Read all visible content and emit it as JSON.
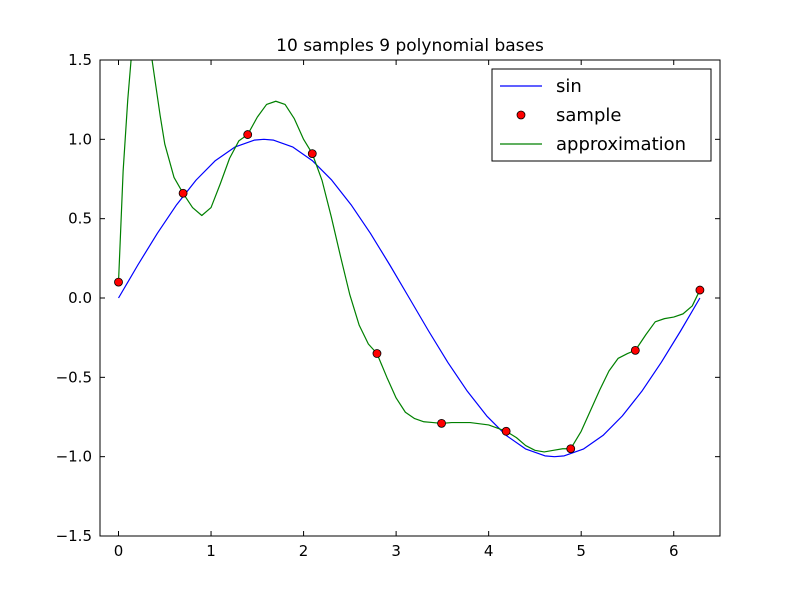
{
  "chart_data": {
    "type": "line",
    "title": "10 samples 9 polynomial bases",
    "xlabel": "",
    "ylabel": "",
    "xlim": [
      -0.2,
      6.5
    ],
    "ylim": [
      -1.5,
      1.5
    ],
    "xticks": [
      {
        "value": 0,
        "label": "0"
      },
      {
        "value": 1,
        "label": "1"
      },
      {
        "value": 2,
        "label": "2"
      },
      {
        "value": 3,
        "label": "3"
      },
      {
        "value": 4,
        "label": "4"
      },
      {
        "value": 5,
        "label": "5"
      },
      {
        "value": 6,
        "label": "6"
      }
    ],
    "yticks": [
      {
        "value": -1.5,
        "label": "−1.5"
      },
      {
        "value": -1.0,
        "label": "−1.0"
      },
      {
        "value": -0.5,
        "label": "−0.5"
      },
      {
        "value": 0.0,
        "label": "0.0"
      },
      {
        "value": 0.5,
        "label": "0.5"
      },
      {
        "value": 1.0,
        "label": "1.0"
      },
      {
        "value": 1.5,
        "label": "1.5"
      }
    ],
    "grid": false,
    "legend_position": "top-right",
    "series": [
      {
        "name": "sin",
        "kind": "line",
        "color": "#0000ff",
        "x": [
          0,
          0.209,
          0.419,
          0.628,
          0.838,
          1.047,
          1.257,
          1.466,
          1.571,
          1.676,
          1.885,
          2.094,
          2.304,
          2.513,
          2.723,
          2.932,
          3.142,
          3.351,
          3.56,
          3.77,
          3.979,
          4.189,
          4.398,
          4.608,
          4.712,
          4.817,
          5.027,
          5.236,
          5.445,
          5.655,
          5.864,
          6.074,
          6.283
        ],
        "y": [
          0,
          0.208,
          0.407,
          0.588,
          0.743,
          0.866,
          0.951,
          0.995,
          1.0,
          0.995,
          0.951,
          0.866,
          0.743,
          0.588,
          0.407,
          0.208,
          0,
          -0.208,
          -0.407,
          -0.588,
          -0.743,
          -0.866,
          -0.951,
          -0.995,
          -1.0,
          -0.995,
          -0.951,
          -0.866,
          -0.743,
          -0.588,
          -0.407,
          -0.208,
          0
        ]
      },
      {
        "name": "sample",
        "kind": "points",
        "color": "#ff0000",
        "x": [
          0,
          0.698,
          1.396,
          2.094,
          2.793,
          3.491,
          4.189,
          4.887,
          5.585,
          6.283
        ],
        "y": [
          0.1,
          0.66,
          1.03,
          0.91,
          -0.35,
          -0.79,
          -0.84,
          -0.95,
          -0.33,
          0.05
        ]
      },
      {
        "name": "approximation",
        "kind": "line",
        "color": "#008000",
        "x": [
          0,
          0.05,
          0.1,
          0.15,
          0.2,
          0.25,
          0.3,
          0.35,
          0.4,
          0.45,
          0.5,
          0.6,
          0.698,
          0.8,
          0.9,
          1.0,
          1.1,
          1.2,
          1.3,
          1.396,
          1.5,
          1.6,
          1.7,
          1.8,
          1.9,
          2.0,
          2.094,
          2.2,
          2.3,
          2.4,
          2.5,
          2.6,
          2.7,
          2.793,
          2.9,
          3.0,
          3.1,
          3.2,
          3.3,
          3.4,
          3.491,
          3.6,
          3.8,
          4.0,
          4.189,
          4.3,
          4.4,
          4.5,
          4.6,
          4.7,
          4.8,
          4.887,
          5.0,
          5.1,
          5.2,
          5.3,
          5.4,
          5.5,
          5.585,
          5.7,
          5.8,
          5.9,
          6.0,
          6.1,
          6.2,
          6.283
        ],
        "y": [
          0.1,
          0.8,
          1.25,
          1.6,
          1.78,
          1.8,
          1.72,
          1.55,
          1.35,
          1.15,
          0.97,
          0.76,
          0.66,
          0.57,
          0.52,
          0.57,
          0.72,
          0.88,
          0.99,
          1.03,
          1.14,
          1.22,
          1.24,
          1.22,
          1.13,
          1.0,
          0.91,
          0.74,
          0.51,
          0.26,
          0.02,
          -0.17,
          -0.29,
          -0.35,
          -0.5,
          -0.63,
          -0.72,
          -0.76,
          -0.78,
          -0.785,
          -0.79,
          -0.785,
          -0.785,
          -0.8,
          -0.84,
          -0.88,
          -0.93,
          -0.96,
          -0.97,
          -0.96,
          -0.95,
          -0.95,
          -0.84,
          -0.71,
          -0.58,
          -0.46,
          -0.38,
          -0.35,
          -0.33,
          -0.23,
          -0.15,
          -0.13,
          -0.12,
          -0.1,
          -0.05,
          0.05
        ]
      }
    ]
  }
}
